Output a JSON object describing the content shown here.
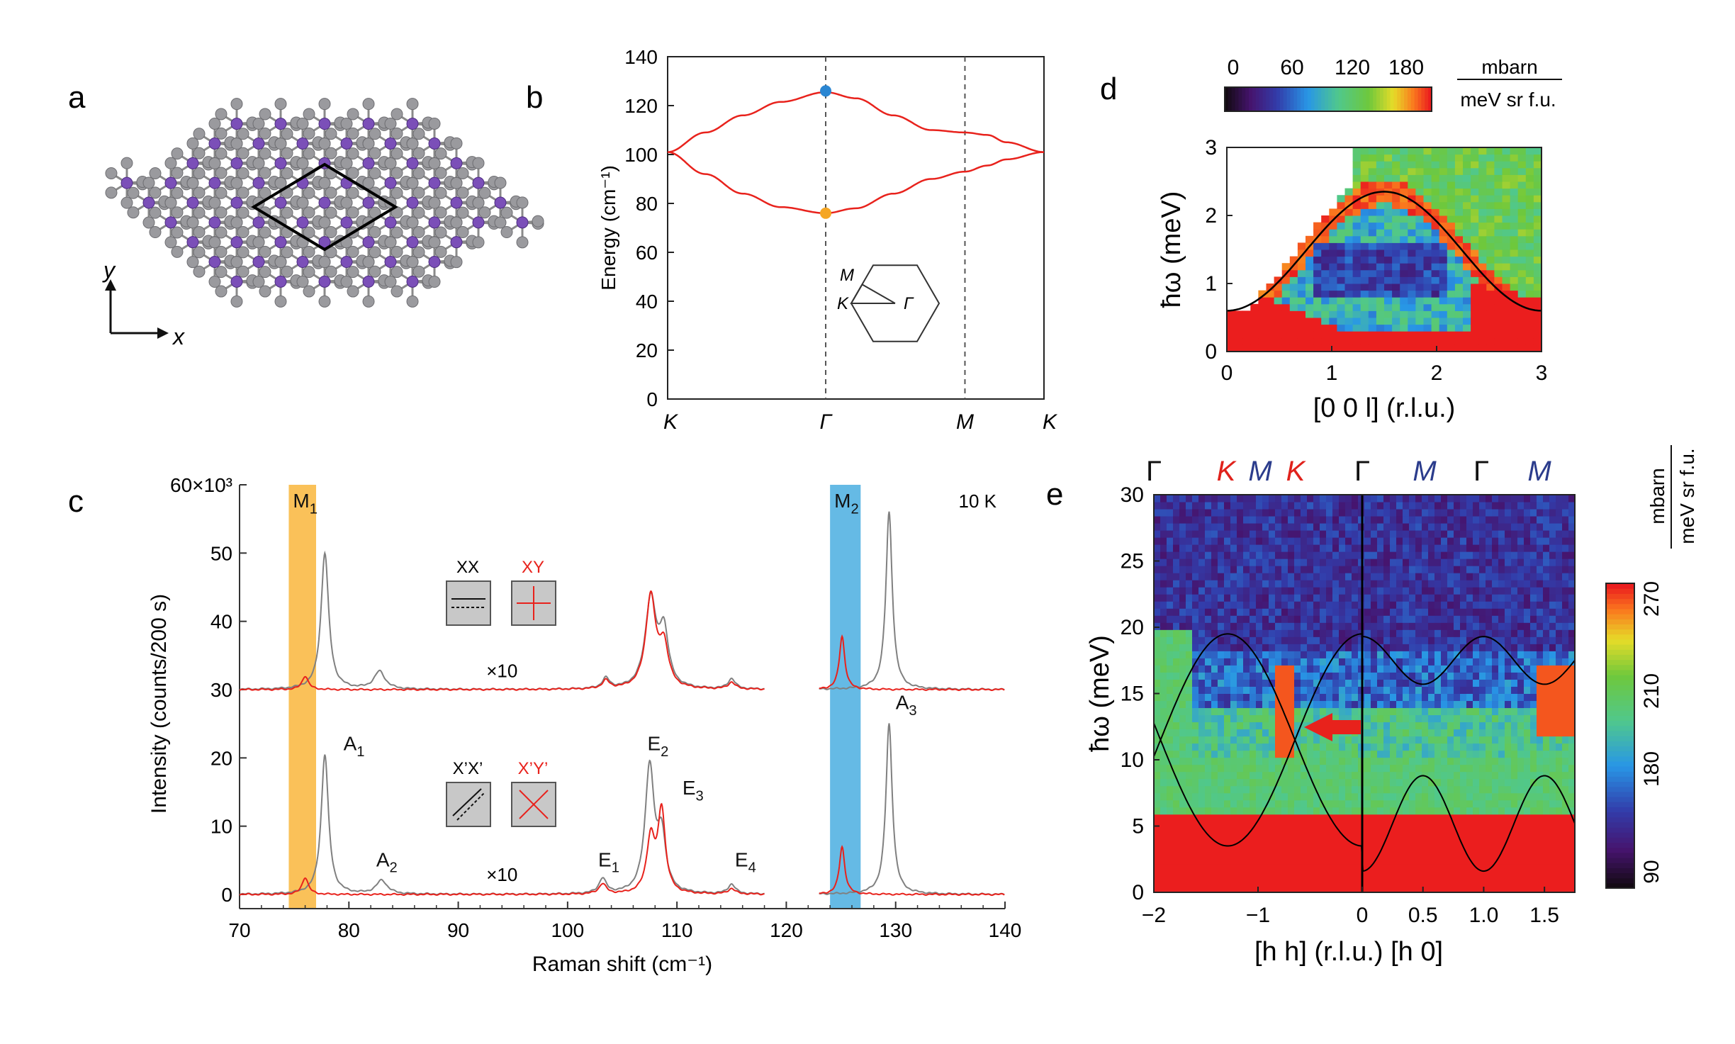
{
  "colors": {
    "red": "#e8221c",
    "gray": "#808080",
    "orange_band": "#f9b63c",
    "blue_band": "#4aaee0",
    "blue_dot": "#2a86d2",
    "orange_dot": "#f5a623",
    "atom_purple": "#7b4fb8",
    "atom_gray": "#9a9a9e",
    "kmlabel_red": "#e0221c",
    "kmlabel_blue": "#2b3c8c"
  },
  "panel_labels": {
    "a": "a",
    "b": "b",
    "c": "c",
    "d": "d",
    "e": "e"
  },
  "panel_a": {
    "x_label": "x",
    "y_label": "y"
  },
  "chart_data": [
    {
      "id": "b",
      "type": "line",
      "title": "",
      "ylabel": "Energy (cm⁻¹)",
      "ylim": [
        0,
        140
      ],
      "yticks": [
        0,
        20,
        40,
        60,
        80,
        100,
        120,
        140
      ],
      "xticks": [
        "K",
        "Γ",
        "M",
        "K"
      ],
      "series": [
        {
          "name": "upper branch",
          "x": [
            0,
            0.1,
            0.2,
            0.3,
            0.42,
            0.5,
            0.6,
            0.7,
            0.79,
            0.85,
            0.9,
            1.0
          ],
          "y": [
            101,
            109,
            116,
            121.5,
            125.5,
            123,
            116,
            110,
            109,
            108,
            105,
            101
          ]
        },
        {
          "name": "lower branch",
          "x": [
            0,
            0.1,
            0.2,
            0.3,
            0.42,
            0.5,
            0.6,
            0.7,
            0.79,
            0.85,
            0.9,
            1.0
          ],
          "y": [
            101,
            92,
            84,
            78.5,
            76,
            78,
            84,
            90,
            93,
            95.5,
            98,
            101
          ]
        }
      ],
      "markers": [
        {
          "label": "blue",
          "x": 0.42,
          "y": 126
        },
        {
          "label": "orange",
          "x": 0.42,
          "y": 76
        }
      ],
      "inset": {
        "labels": [
          "M",
          "K",
          "Γ"
        ]
      }
    },
    {
      "id": "c",
      "type": "line",
      "title": "",
      "xlabel": "Raman shift (cm⁻¹)",
      "ylabel": "Intensity (counts/200 s)",
      "xlim": [
        70,
        140
      ],
      "ylim": [
        0,
        60000
      ],
      "xticks": [
        70,
        80,
        90,
        100,
        110,
        120,
        130,
        140
      ],
      "ytick_labels": [
        "0",
        "10",
        "20",
        "30",
        "40",
        "50",
        "60×10³"
      ],
      "temperature": "10 K",
      "bands": [
        {
          "label": "M1",
          "x": [
            74.5,
            77
          ]
        },
        {
          "label": "M2",
          "x": [
            124,
            126.8
          ]
        }
      ],
      "peaks_gray": [
        {
          "pos": 77.8,
          "amp": 20500,
          "w": 0.4
        },
        {
          "pos": 83,
          "amp": 2000,
          "w": 0.6
        },
        {
          "pos": 103.2,
          "amp": 2200,
          "w": 0.4
        },
        {
          "pos": 107.5,
          "amp": 18500,
          "w": 0.5
        },
        {
          "pos": 108.6,
          "amp": 8000,
          "w": 0.45
        },
        {
          "pos": 115,
          "amp": 1400,
          "w": 0.4
        },
        {
          "pos": 129.4,
          "amp": 25000,
          "w": 0.35
        }
      ],
      "peaks_red": [
        {
          "pos": 76,
          "amp": 2500,
          "w": 0.35
        },
        {
          "pos": 103.2,
          "amp": 1500,
          "w": 0.4
        },
        {
          "pos": 107.6,
          "amp": 8000,
          "w": 0.45
        },
        {
          "pos": 108.6,
          "amp": 12000,
          "w": 0.4
        },
        {
          "pos": 115,
          "amp": 800,
          "w": 0.4
        },
        {
          "pos": 125.1,
          "amp": 7000,
          "w": 0.3
        }
      ],
      "peaks_gray_top": [
        {
          "pos": 77.8,
          "amp": 20000,
          "w": 0.42
        },
        {
          "pos": 82.8,
          "amp": 2600,
          "w": 0.6
        },
        {
          "pos": 103.5,
          "amp": 1500,
          "w": 0.4
        },
        {
          "pos": 107.6,
          "amp": 13000,
          "w": 0.6
        },
        {
          "pos": 108.8,
          "amp": 8000,
          "w": 0.5
        },
        {
          "pos": 115,
          "amp": 1500,
          "w": 0.4
        },
        {
          "pos": 129.4,
          "amp": 26000,
          "w": 0.35
        }
      ],
      "peaks_red_top": [
        {
          "pos": 76,
          "amp": 2000,
          "w": 0.35
        },
        {
          "pos": 103.5,
          "amp": 1200,
          "w": 0.4
        },
        {
          "pos": 107.6,
          "amp": 13500,
          "w": 0.55
        },
        {
          "pos": 108.8,
          "amp": 6000,
          "w": 0.5
        },
        {
          "pos": 115,
          "amp": 1000,
          "w": 0.4
        },
        {
          "pos": 125.1,
          "amp": 7800,
          "w": 0.3
        }
      ],
      "top_offset": 30000,
      "peak_labels": [
        {
          "t": "A",
          "s": "1",
          "x": 79.5,
          "y": 20500
        },
        {
          "t": "A",
          "s": "2",
          "x": 82.5,
          "y": 3500
        },
        {
          "t": "E",
          "s": "1",
          "x": 102.8,
          "y": 3500
        },
        {
          "t": "E",
          "s": "2",
          "x": 107.3,
          "y": 20500
        },
        {
          "t": "E",
          "s": "3",
          "x": 110.5,
          "y": 14000
        },
        {
          "t": "E",
          "s": "4",
          "x": 115.3,
          "y": 3500
        },
        {
          "t": "A",
          "s": "3",
          "x": 130,
          "y": 26500
        }
      ],
      "scale_notes": [
        {
          "text": "×10",
          "x": 94,
          "y": 32000
        },
        {
          "text": "×10",
          "x": 94,
          "y": 2200
        }
      ],
      "legend_top": [
        "XX",
        "XY"
      ],
      "legend_bottom": [
        "X’X’",
        "X’Y’"
      ],
      "band_labels": [
        {
          "t": "M",
          "s": "1"
        },
        {
          "t": "M",
          "s": "2"
        }
      ]
    },
    {
      "id": "d",
      "type": "heatmap",
      "title": "",
      "xlabel": "[0 0 l] (r.l.u.)",
      "ylabel": "ħω (meV)",
      "xlim": [
        0,
        3
      ],
      "ylim": [
        0,
        3
      ],
      "xticks": [
        0,
        1,
        2,
        3
      ],
      "yticks": [
        0,
        1,
        2,
        3
      ],
      "dispersion": {
        "min": 0.6,
        "max": 2.35,
        "peak_at": 1.5
      },
      "colorbar": {
        "ticks": [
          "0",
          "60",
          "120",
          "180"
        ],
        "unit_top": "mbarn",
        "unit_bottom": "meV sr f.u."
      }
    },
    {
      "id": "e",
      "type": "heatmap",
      "title": "",
      "xlabel": "[h h]   (r.l.u.)   [h 0]",
      "ylabel": "ħω (meV)",
      "xlim": [
        -2,
        1.75
      ],
      "ylim": [
        0,
        30
      ],
      "xtick_labels": [
        "−2",
        "−1",
        "0",
        "0.5",
        "1.0",
        "1.5"
      ],
      "yticks": [
        0,
        5,
        10,
        15,
        20,
        25,
        30
      ],
      "top_labels": [
        {
          "t": "Γ",
          "c": "black"
        },
        {
          "t": "K",
          "c": "red"
        },
        {
          "t": "M",
          "c": "blue"
        },
        {
          "t": "K",
          "c": "red"
        },
        {
          "t": "Γ",
          "c": "black"
        },
        {
          "t": "M",
          "c": "blue"
        },
        {
          "t": "Γ",
          "c": "black"
        },
        {
          "t": "M",
          "c": "blue"
        }
      ],
      "colorbar": {
        "ticks": [
          "90",
          "180",
          "210",
          "270"
        ],
        "unit_top": "mbarn",
        "unit_bottom": "meV sr f.u."
      }
    }
  ]
}
